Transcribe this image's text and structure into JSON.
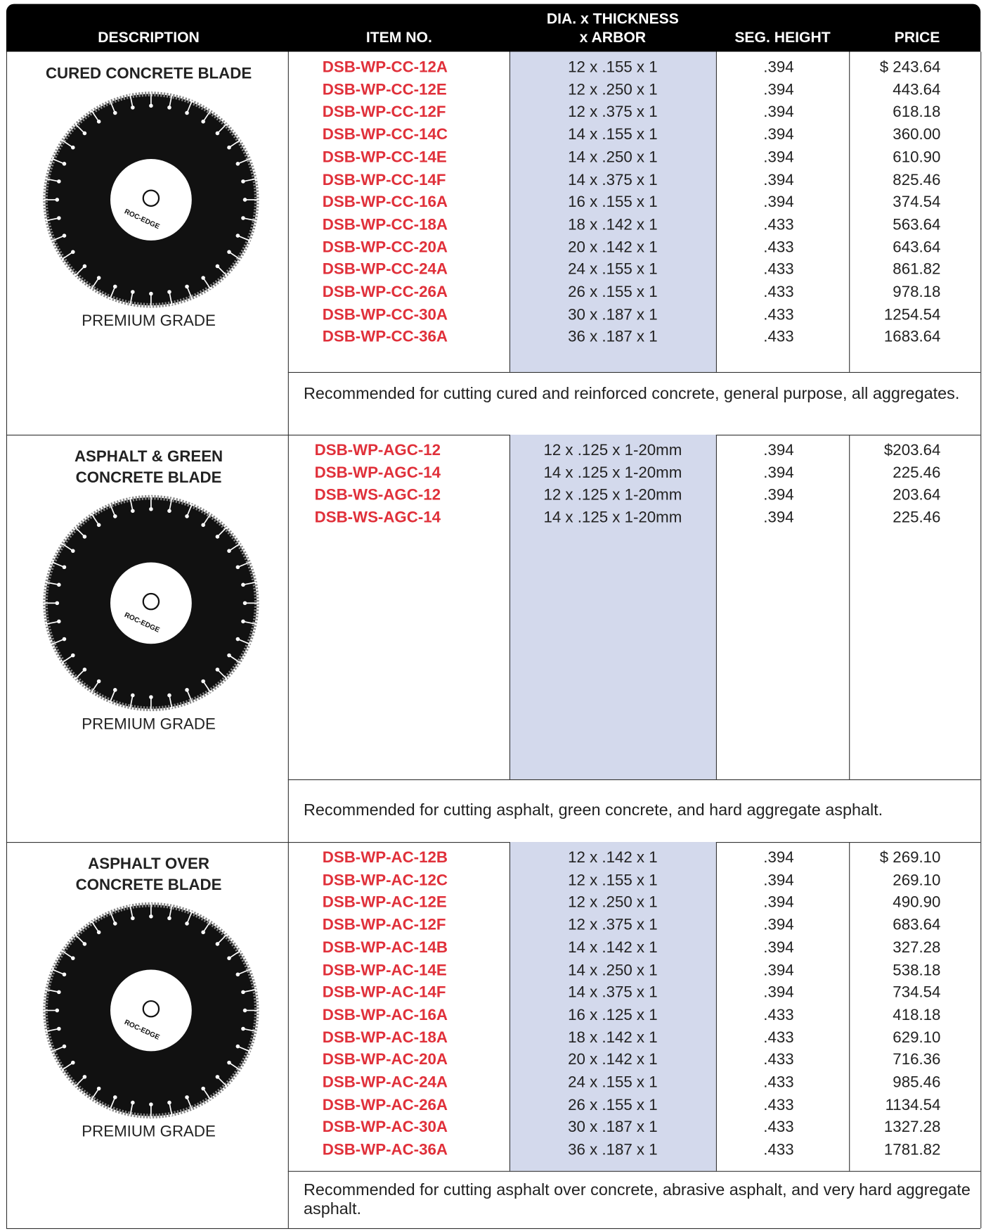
{
  "header": {
    "columns": [
      [
        "DESCRIPTION"
      ],
      [
        "ITEM NO."
      ],
      [
        "DIA. x THICKNESS",
        "x ARBOR"
      ],
      [
        "SEG. HEIGHT"
      ],
      [
        "PRICE"
      ]
    ]
  },
  "sections": [
    {
      "title": [
        "CURED CONCRETE BLADE"
      ],
      "blade_label": "ROC-EDGE",
      "grade": "PREMIUM GRADE",
      "rows": [
        [
          "DSB-WP-CC-12A",
          "12 x .155 x 1",
          ".394",
          "$ 243.64"
        ],
        [
          "DSB-WP-CC-12E",
          "12 x .250 x 1",
          ".394",
          "443.64"
        ],
        [
          "DSB-WP-CC-12F",
          "12 x .375 x 1",
          ".394",
          "618.18"
        ],
        [
          "DSB-WP-CC-14C",
          "14 x .155 x 1",
          ".394",
          "360.00"
        ],
        [
          "DSB-WP-CC-14E",
          "14 x .250 x 1",
          ".394",
          "610.90"
        ],
        [
          "DSB-WP-CC-14F",
          "14 x .375 x 1",
          ".394",
          "825.46"
        ],
        [
          "DSB-WP-CC-16A",
          "16 x .155 x 1",
          ".394",
          "374.54"
        ],
        [
          "DSB-WP-CC-18A",
          "18 x .142 x 1",
          ".433",
          "563.64"
        ],
        [
          "DSB-WP-CC-20A",
          "20 x .142 x 1",
          ".433",
          "643.64"
        ],
        [
          "DSB-WP-CC-24A",
          "24 x .155 x 1",
          ".433",
          "861.82"
        ],
        [
          "DSB-WP-CC-26A",
          "26 x .155 x 1",
          ".433",
          "978.18"
        ],
        [
          "DSB-WP-CC-30A",
          "30 x .187 x 1",
          ".433",
          "1254.54"
        ],
        [
          "DSB-WP-CC-36A",
          "36 x .187 x 1",
          ".433",
          "1683.64"
        ]
      ],
      "note": "Recommended for cutting cured and reinforced concrete, general purpose, all aggregates."
    },
    {
      "title": [
        "ASPHALT & GREEN",
        "CONCRETE BLADE"
      ],
      "blade_label": "ROC-EDGE",
      "grade": "PREMIUM GRADE",
      "rows": [
        [
          "DSB-WP-AGC-12",
          "12 x .125 x 1-20mm",
          ".394",
          "$203.64"
        ],
        [
          "DSB-WP-AGC-14",
          "14 x .125 x 1-20mm",
          ".394",
          "225.46"
        ],
        [
          "DSB-WS-AGC-12",
          "12 x .125 x 1-20mm",
          ".394",
          "203.64"
        ],
        [
          "DSB-WS-AGC-14",
          "14 x .125 x 1-20mm",
          ".394",
          "225.46"
        ]
      ],
      "note": "Recommended for cutting asphalt, green concrete, and hard aggregate asphalt."
    },
    {
      "title": [
        "ASPHALT OVER",
        "CONCRETE BLADE"
      ],
      "blade_label": "ROC-EDGE",
      "grade": "PREMIUM GRADE",
      "rows": [
        [
          "DSB-WP-AC-12B",
          "12 x .142 x 1",
          ".394",
          "$ 269.10"
        ],
        [
          "DSB-WP-AC-12C",
          "12 x .155 x 1",
          ".394",
          "269.10"
        ],
        [
          "DSB-WP-AC-12E",
          "12 x .250 x 1",
          ".394",
          "490.90"
        ],
        [
          "DSB-WP-AC-12F",
          "12 x .375 x 1",
          ".394",
          "683.64"
        ],
        [
          "DSB-WP-AC-14B",
          "14 x .142 x 1",
          ".394",
          "327.28"
        ],
        [
          "DSB-WP-AC-14E",
          "14 x .250 x 1",
          ".394",
          "538.18"
        ],
        [
          "DSB-WP-AC-14F",
          "14 x .375 x 1",
          ".394",
          "734.54"
        ],
        [
          "DSB-WP-AC-16A",
          "16 x .125 x 1",
          ".433",
          "418.18"
        ],
        [
          "DSB-WP-AC-18A",
          "18 x .142 x 1",
          ".433",
          "629.10"
        ],
        [
          "DSB-WP-AC-20A",
          "20 x .142 x 1",
          ".433",
          "716.36"
        ],
        [
          "DSB-WP-AC-24A",
          "24 x .155 x 1",
          ".433",
          "985.46"
        ],
        [
          "DSB-WP-AC-26A",
          "26 x .155 x 1",
          ".433",
          "1134.54"
        ],
        [
          "DSB-WP-AC-30A",
          "30 x .187 x 1",
          ".433",
          "1327.28"
        ],
        [
          "DSB-WP-AC-36A",
          "36 x .187 x 1",
          ".433",
          "1781.82"
        ]
      ],
      "note": "Recommended for cutting asphalt over concrete, abrasive asphalt, and very hard aggregate asphalt."
    }
  ]
}
